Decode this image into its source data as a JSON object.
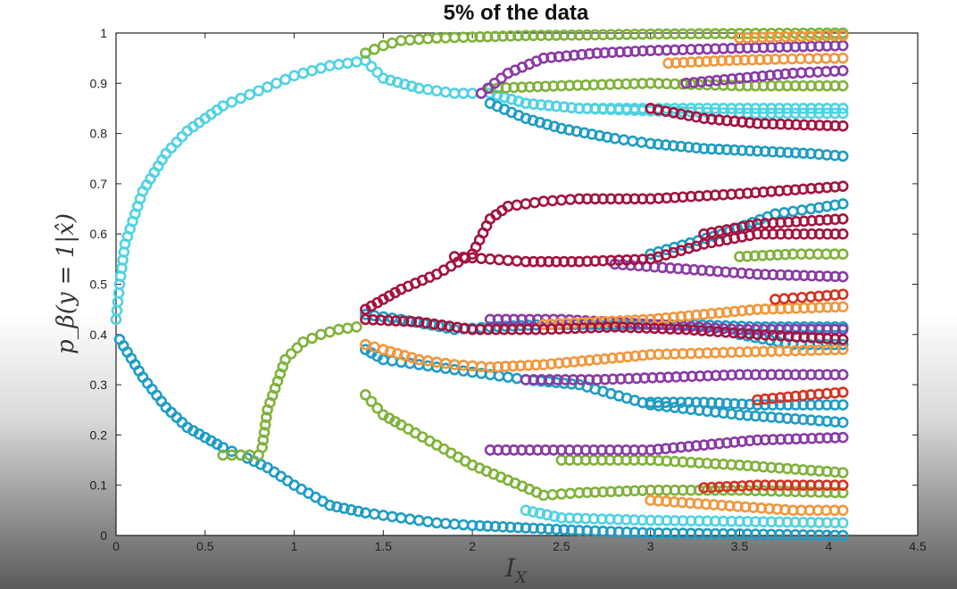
{
  "chart_data": {
    "type": "scatter",
    "title": "5% of the data",
    "xlabel": "I_X",
    "ylabel": "p_β(y = 1|x̂)",
    "xlim": [
      0,
      4.5
    ],
    "ylim": [
      0,
      1
    ],
    "xticks": [
      "0",
      "0.5",
      "1",
      "1.5",
      "2",
      "2.5",
      "3",
      "3.5",
      "4",
      "4.5"
    ],
    "yticks": [
      "0",
      "0.1",
      "0.2",
      "0.3",
      "0.4",
      "0.5",
      "0.6",
      "0.7",
      "0.8",
      "0.9",
      "1"
    ],
    "grid": false,
    "colors": {
      "cyan": "#4fd2e3",
      "teal": "#1e9cc4",
      "green": "#7fb23a",
      "purple": "#8a3aa6",
      "orange": "#f2963a",
      "crimson": "#a3133f",
      "red": "#d7321f"
    },
    "series": [
      {
        "color": "cyan",
        "x": [
          0.0,
          0.02,
          0.05,
          0.15,
          0.28,
          0.4,
          0.5,
          0.6,
          0.7,
          0.8,
          0.9,
          1.0,
          1.1,
          1.2,
          1.3,
          1.4,
          1.5,
          1.7,
          1.9,
          2.1,
          2.3,
          2.6,
          3.0,
          3.5,
          4.08
        ],
        "y": [
          0.43,
          0.5,
          0.58,
          0.685,
          0.76,
          0.805,
          0.83,
          0.855,
          0.87,
          0.885,
          0.9,
          0.915,
          0.925,
          0.935,
          0.94,
          0.945,
          0.91,
          0.89,
          0.88,
          0.88,
          0.86,
          0.85,
          0.85,
          0.85,
          0.85
        ]
      },
      {
        "color": "cyan",
        "x": [
          2.1,
          2.3,
          2.6,
          3.0,
          3.5,
          4.08
        ],
        "y": [
          0.88,
          0.86,
          0.85,
          0.845,
          0.84,
          0.84
        ]
      },
      {
        "color": "cyan",
        "x": [
          2.3,
          2.5,
          3.0,
          3.5,
          4.08
        ],
        "y": [
          0.05,
          0.035,
          0.03,
          0.028,
          0.025
        ]
      },
      {
        "color": "teal",
        "x": [
          0.02,
          0.15,
          0.28,
          0.4,
          0.5,
          0.6,
          0.7,
          0.85,
          1.0,
          1.2,
          1.4,
          1.6,
          1.8,
          2.0,
          2.3,
          2.6,
          3.0,
          3.5,
          4.08
        ],
        "y": [
          0.39,
          0.315,
          0.255,
          0.215,
          0.195,
          0.175,
          0.16,
          0.135,
          0.1,
          0.06,
          0.045,
          0.035,
          0.025,
          0.02,
          0.015,
          0.01,
          0.005,
          0.003,
          0.0
        ]
      },
      {
        "color": "teal",
        "x": [
          1.4,
          1.5,
          1.7,
          1.9,
          2.1,
          2.3,
          2.6,
          3.0,
          3.5,
          4.08
        ],
        "y": [
          0.37,
          0.35,
          0.34,
          0.33,
          0.32,
          0.31,
          0.3,
          0.26,
          0.24,
          0.225
        ]
      },
      {
        "color": "teal",
        "x": [
          2.1,
          2.3,
          2.5,
          2.8,
          3.0,
          3.3,
          3.6,
          3.9,
          4.08
        ],
        "y": [
          0.86,
          0.83,
          0.81,
          0.79,
          0.78,
          0.77,
          0.765,
          0.76,
          0.755
        ]
      },
      {
        "color": "teal",
        "x": [
          3.0,
          3.3,
          3.6,
          3.9,
          4.08
        ],
        "y": [
          0.265,
          0.265,
          0.26,
          0.26,
          0.26
        ]
      },
      {
        "color": "teal",
        "x": [
          1.4,
          1.6,
          1.9,
          2.1,
          2.4,
          2.8,
          3.2,
          3.6,
          4.08
        ],
        "y": [
          0.44,
          0.43,
          0.41,
          0.415,
          0.42,
          0.42,
          0.42,
          0.415,
          0.415
        ]
      },
      {
        "color": "teal",
        "x": [
          3.0,
          3.4,
          3.7,
          3.9,
          4.08
        ],
        "y": [
          0.56,
          0.6,
          0.64,
          0.65,
          0.66
        ]
      },
      {
        "color": "teal",
        "x": [
          3.5,
          3.8,
          4.08
        ],
        "y": [
          0.4,
          0.38,
          0.38
        ]
      },
      {
        "color": "green",
        "x": [
          0.6,
          0.7,
          0.8,
          0.82,
          0.85,
          0.95,
          1.05,
          1.15,
          1.25,
          1.35
        ],
        "y": [
          0.16,
          0.16,
          0.16,
          0.175,
          0.25,
          0.35,
          0.385,
          0.4,
          0.41,
          0.415
        ]
      },
      {
        "color": "green",
        "x": [
          1.4,
          1.5,
          1.6,
          1.8,
          2.0,
          2.3,
          2.6,
          3.0,
          3.5,
          4.08
        ],
        "y": [
          0.96,
          0.975,
          0.985,
          0.99,
          0.992,
          0.995,
          0.996,
          0.998,
          0.999,
          1.0
        ]
      },
      {
        "color": "green",
        "x": [
          1.4,
          1.5,
          1.6,
          1.8,
          2.0,
          2.2,
          2.4,
          2.6,
          3.0,
          3.5,
          4.08
        ],
        "y": [
          0.28,
          0.24,
          0.22,
          0.18,
          0.14,
          0.11,
          0.08,
          0.085,
          0.09,
          0.09,
          0.085
        ]
      },
      {
        "color": "green",
        "x": [
          2.1,
          2.5,
          3.0,
          3.5,
          4.08
        ],
        "y": [
          0.89,
          0.895,
          0.9,
          0.895,
          0.895
        ]
      },
      {
        "color": "green",
        "x": [
          3.5,
          3.8,
          4.08
        ],
        "y": [
          0.555,
          0.56,
          0.56
        ]
      },
      {
        "color": "green",
        "x": [
          2.5,
          3.0,
          3.5,
          4.08
        ],
        "y": [
          0.15,
          0.15,
          0.14,
          0.125
        ]
      },
      {
        "color": "purple",
        "x": [
          2.05,
          2.2,
          2.4,
          2.7,
          3.0,
          3.5,
          4.08
        ],
        "y": [
          0.88,
          0.92,
          0.95,
          0.96,
          0.965,
          0.97,
          0.975
        ]
      },
      {
        "color": "purple",
        "x": [
          2.1,
          2.5,
          3.0,
          3.3,
          3.6,
          4.08
        ],
        "y": [
          0.17,
          0.17,
          0.17,
          0.18,
          0.19,
          0.195
        ]
      },
      {
        "color": "purple",
        "x": [
          2.1,
          2.5,
          3.0,
          3.5,
          4.08
        ],
        "y": [
          0.43,
          0.43,
          0.42,
          0.41,
          0.41
        ]
      },
      {
        "color": "purple",
        "x": [
          2.8,
          3.2,
          3.6,
          4.08
        ],
        "y": [
          0.54,
          0.53,
          0.52,
          0.515
        ]
      },
      {
        "color": "purple",
        "x": [
          2.3,
          2.7,
          3.1,
          3.5,
          4.08
        ],
        "y": [
          0.31,
          0.31,
          0.315,
          0.32,
          0.32
        ]
      },
      {
        "color": "purple",
        "x": [
          3.2,
          3.5,
          3.8,
          4.08
        ],
        "y": [
          0.9,
          0.91,
          0.92,
          0.925
        ]
      },
      {
        "color": "orange",
        "x": [
          1.4,
          1.5,
          1.7,
          1.9,
          2.1,
          2.4,
          2.7,
          3.0,
          3.5,
          4.08
        ],
        "y": [
          0.38,
          0.37,
          0.35,
          0.34,
          0.335,
          0.34,
          0.35,
          0.36,
          0.365,
          0.37
        ]
      },
      {
        "color": "orange",
        "x": [
          2.4,
          2.7,
          3.0,
          3.3,
          3.6,
          4.08
        ],
        "y": [
          0.42,
          0.425,
          0.43,
          0.44,
          0.45,
          0.455
        ]
      },
      {
        "color": "orange",
        "x": [
          3.1,
          3.4,
          3.7,
          4.08
        ],
        "y": [
          0.94,
          0.945,
          0.948,
          0.95
        ]
      },
      {
        "color": "orange",
        "x": [
          3.0,
          3.4,
          3.8,
          4.08
        ],
        "y": [
          0.07,
          0.06,
          0.05,
          0.05
        ]
      },
      {
        "color": "orange",
        "x": [
          3.5,
          3.8,
          4.08
        ],
        "y": [
          0.99,
          0.993,
          0.995
        ]
      },
      {
        "color": "crimson",
        "x": [
          1.4,
          1.5,
          1.6,
          1.8,
          2.0,
          2.1,
          2.2,
          2.4,
          2.6,
          3.0,
          3.5,
          4.08
        ],
        "y": [
          0.45,
          0.47,
          0.49,
          0.52,
          0.56,
          0.63,
          0.655,
          0.665,
          0.67,
          0.67,
          0.68,
          0.695
        ]
      },
      {
        "color": "crimson",
        "x": [
          1.9,
          2.1,
          2.3,
          2.6,
          3.0,
          3.3,
          3.6,
          4.08
        ],
        "y": [
          0.555,
          0.55,
          0.545,
          0.545,
          0.55,
          0.58,
          0.6,
          0.6
        ]
      },
      {
        "color": "crimson",
        "x": [
          3.3,
          3.6,
          4.08
        ],
        "y": [
          0.6,
          0.62,
          0.63
        ]
      },
      {
        "color": "crimson",
        "x": [
          3.0,
          3.3,
          3.6,
          4.08
        ],
        "y": [
          0.85,
          0.83,
          0.82,
          0.815
        ]
      },
      {
        "color": "crimson",
        "x": [
          1.4,
          1.7,
          2.0,
          2.4,
          2.8,
          3.2,
          3.6,
          4.08
        ],
        "y": [
          0.43,
          0.425,
          0.41,
          0.41,
          0.415,
          0.41,
          0.4,
          0.39
        ]
      },
      {
        "color": "red",
        "x": [
          3.3,
          3.6,
          3.9,
          4.08
        ],
        "y": [
          0.095,
          0.1,
          0.1,
          0.1
        ]
      },
      {
        "color": "red",
        "x": [
          3.6,
          3.9,
          4.08
        ],
        "y": [
          0.27,
          0.28,
          0.285
        ]
      },
      {
        "color": "red",
        "x": [
          3.7,
          3.9,
          4.08
        ],
        "y": [
          0.47,
          0.475,
          0.48
        ]
      }
    ]
  }
}
